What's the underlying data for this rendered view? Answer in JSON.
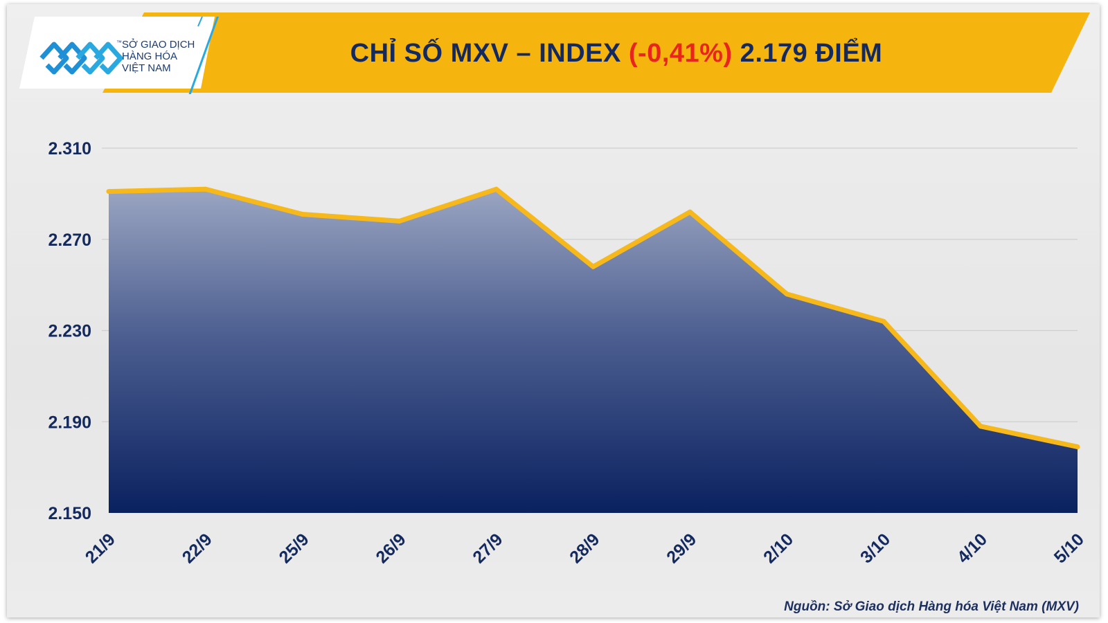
{
  "logo": {
    "line1": "SỞ GIAO DỊCH",
    "line2": "HÀNG HÓA",
    "line3": "VIỆT NAM",
    "tm": "™"
  },
  "header": {
    "title_prefix": "CHỈ SỐ MXV – INDEX ",
    "title_change": "(-0,41%)",
    "title_suffix": " 2.179 ĐIỂM"
  },
  "source": "Nguồn: Sở Giao dịch Hàng hóa Việt Nam (MXV)",
  "colors": {
    "banner": "#f6b40e",
    "title": "#142a5e",
    "negative": "#e8241b",
    "line": "#f6b81a",
    "area_top": "#9aa5c1",
    "area_bottom": "#0a2160"
  },
  "chart_data": {
    "type": "area",
    "categories": [
      "21/9",
      "22/9",
      "25/9",
      "26/9",
      "27/9",
      "28/9",
      "29/9",
      "2/10",
      "3/10",
      "4/10",
      "5/10"
    ],
    "values": [
      2.291,
      2.292,
      2.281,
      2.278,
      2.292,
      2.258,
      2.282,
      2.246,
      2.234,
      2.188,
      2.179
    ],
    "ylim": [
      2.15,
      2.31
    ],
    "yticks": [
      2.31,
      2.27,
      2.23,
      2.19,
      2.15
    ],
    "ytick_labels": [
      "2.310",
      "2.270",
      "2.230",
      "2.190",
      "2.150"
    ],
    "grid": true,
    "legend": "none"
  }
}
